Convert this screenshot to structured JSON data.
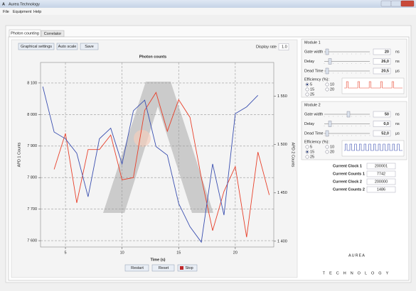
{
  "window": {
    "title": "Aurea Technology",
    "menu": [
      "File",
      "Equipment",
      "Help"
    ]
  },
  "tabs": [
    "Photon counting",
    "Correlator"
  ],
  "toolbar": {
    "buttons": [
      "Graphical settings",
      "Auto scale",
      "Save"
    ],
    "display_rate_label": "Display rate",
    "display_rate": "1.0"
  },
  "chart_data": {
    "type": "line",
    "title": "Photon counts",
    "x_label": "Time (s)",
    "y_label": "APD 1 Counts",
    "y2_label": "APD 2 Counts",
    "x": [
      3,
      4,
      5,
      6,
      7,
      8,
      9,
      10,
      11,
      12,
      13,
      14,
      15,
      16,
      17,
      18,
      19,
      20,
      21,
      22,
      23
    ],
    "xlim": [
      2.8,
      23.4
    ],
    "xticks": [
      5,
      10,
      15,
      20
    ],
    "ylim": [
      7580,
      8165
    ],
    "yticks": [
      {
        "value": 7600,
        "label": "7 600"
      },
      {
        "value": 7700,
        "label": "7 700"
      },
      {
        "value": 7800,
        "label": "7 800"
      },
      {
        "value": 7900,
        "label": "7 900"
      },
      {
        "value": 8000,
        "label": "8 000"
      },
      {
        "value": 8100,
        "label": "8 100"
      }
    ],
    "y2lim": [
      1394,
      1585
    ],
    "y2ticks": [
      {
        "value": 1400,
        "label": "1 400"
      },
      {
        "value": 1450,
        "label": "1 450"
      },
      {
        "value": 1500,
        "label": "1 500"
      },
      {
        "value": 1550,
        "label": "1 550"
      }
    ],
    "grid": true,
    "series": [
      {
        "name": "APD 1 Counts",
        "color": "#e8402a",
        "values": [
          null,
          7826,
          7940,
          7720,
          7889,
          7889,
          7935,
          7793,
          7800,
          8013,
          8070,
          7947,
          8047,
          7991,
          7800,
          7632,
          7756,
          7835,
          7611,
          7881,
          7745
        ]
      },
      {
        "name": "APD 2 Counts",
        "color": "#3a4fb0",
        "axis": "y2",
        "values": [
          1560,
          1513,
          1506,
          1491,
          1446,
          1506,
          1517,
          1480,
          1535,
          1546,
          1498,
          1489,
          1439,
          1415,
          1399,
          1480,
          1427,
          1532,
          1539,
          1551,
          null
        ]
      }
    ]
  },
  "controls": [
    "Restart",
    "Reset",
    "Stop"
  ],
  "modules": [
    {
      "title": "Module 1",
      "color": "#e8402a",
      "settings": [
        {
          "label": "Gate width",
          "value": "20",
          "unit": "ns"
        },
        {
          "label": "Delay",
          "value": "26,0",
          "unit": "ns"
        },
        {
          "label": "Dead Time",
          "value": "20,5",
          "unit": "µs"
        }
      ],
      "efficiency_label": "Efficiency (%):",
      "efficiency_options": [
        "5",
        "10",
        "15",
        "20",
        "25"
      ],
      "selected": "5"
    },
    {
      "title": "Module 2",
      "color": "#3a4fb0",
      "settings": [
        {
          "label": "Gate width",
          "value": "50",
          "unit": "ns"
        },
        {
          "label": "Delay",
          "value": "0,0",
          "unit": "ns"
        },
        {
          "label": "Dead Time",
          "value": "52,0",
          "unit": "µs"
        }
      ],
      "efficiency_label": "Efficiency (%):",
      "efficiency_options": [
        "5",
        "10",
        "15",
        "20",
        "25"
      ],
      "selected": "15"
    }
  ],
  "counters": [
    {
      "label": "Current Clock 1",
      "value": "200001",
      "color": "#e8402a"
    },
    {
      "label": "Current Counts 1",
      "value": "7742",
      "color": "#e8402a"
    },
    {
      "label": "Current Clock 2",
      "value": "200000",
      "color": "#3a4fb0"
    },
    {
      "label": "Current Counts 2",
      "value": "1486",
      "color": "#3a4fb0"
    }
  ],
  "logo": {
    "name": "AUREA",
    "tagline": "TECHNOLOGY"
  }
}
